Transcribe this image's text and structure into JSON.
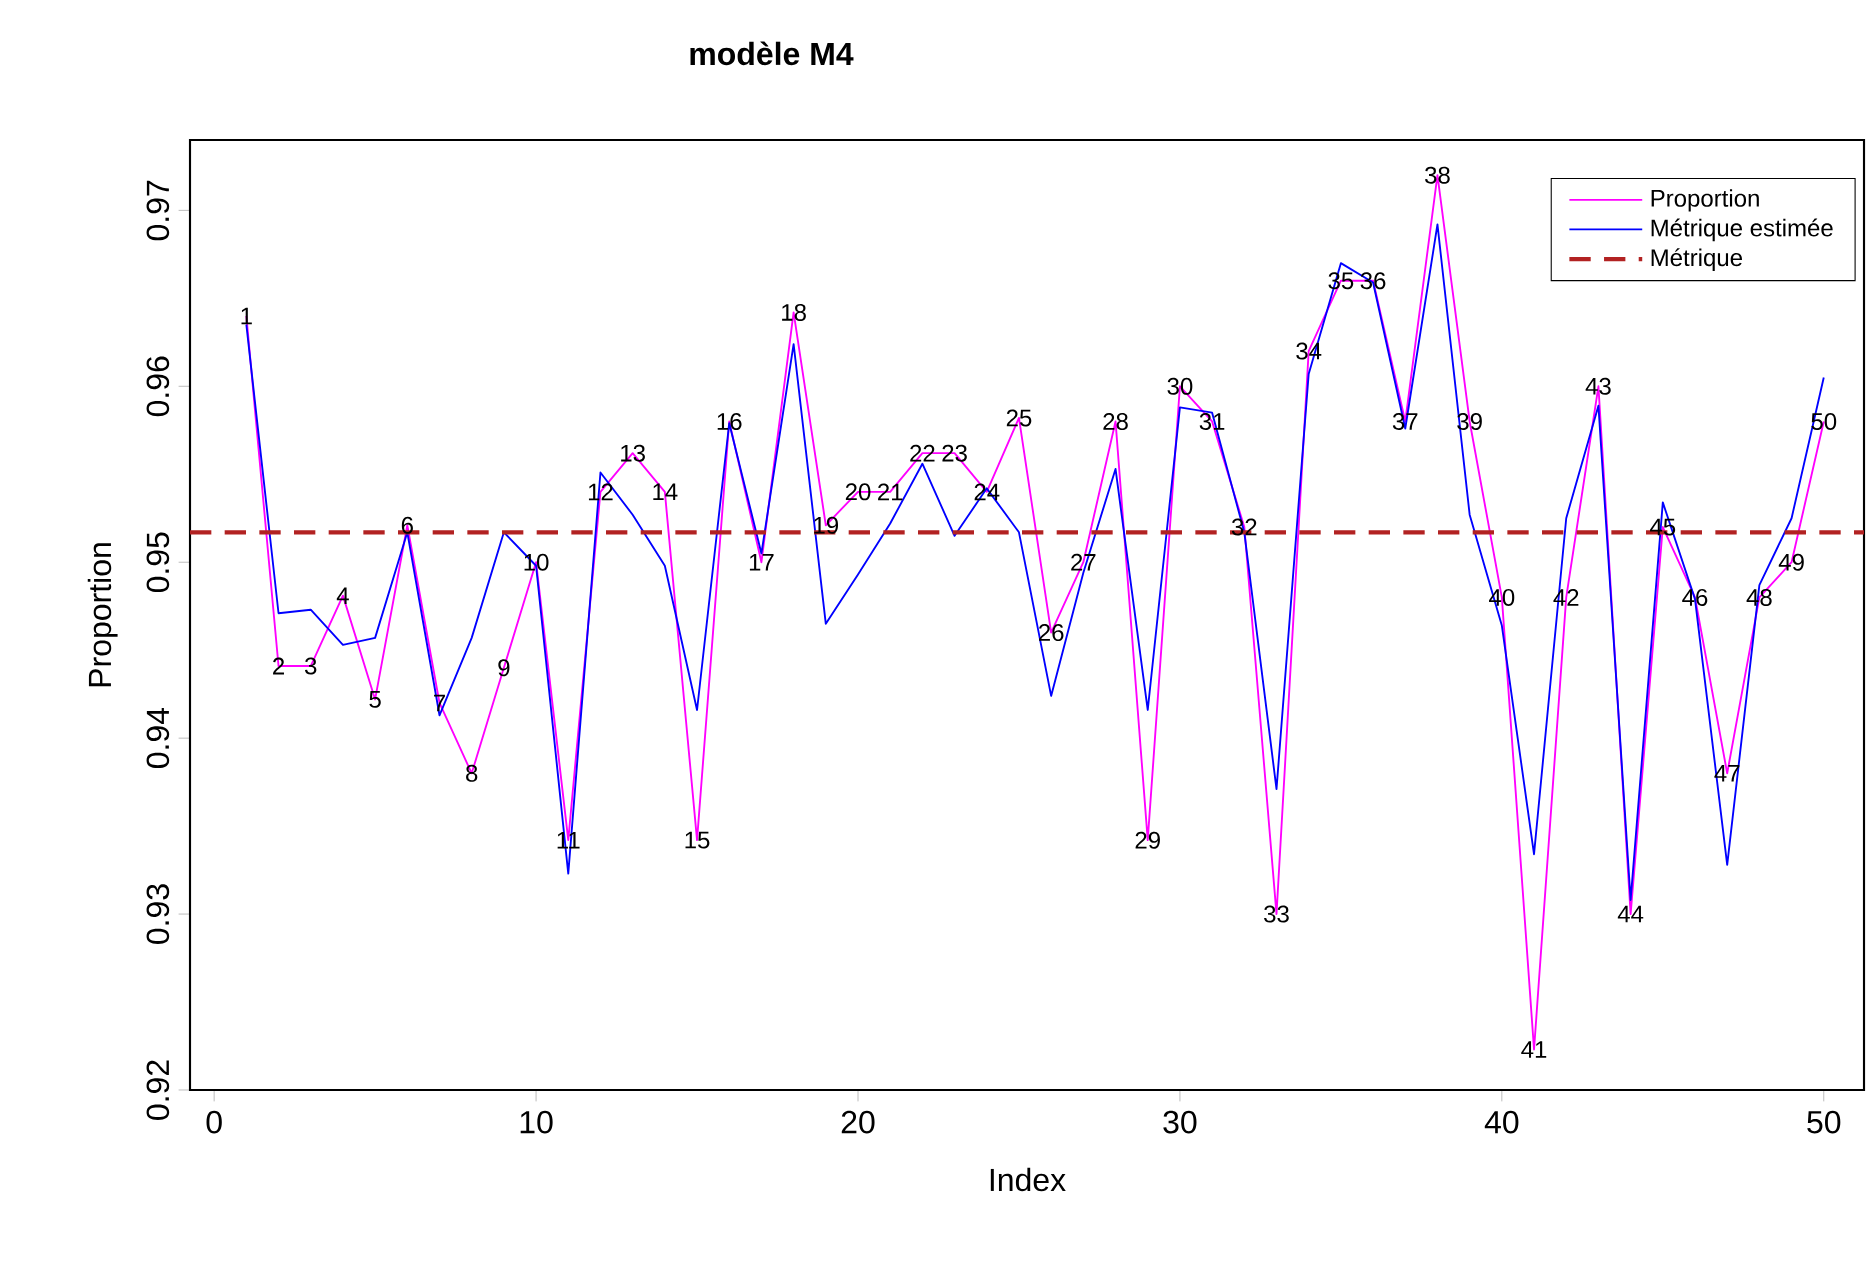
{
  "chart_data": {
    "type": "line",
    "title": "modèle M4",
    "xlabel": "Index",
    "ylabel": "Proportion",
    "x": [
      1,
      2,
      3,
      4,
      5,
      6,
      7,
      8,
      9,
      10,
      11,
      12,
      13,
      14,
      15,
      16,
      17,
      18,
      19,
      20,
      21,
      22,
      23,
      24,
      25,
      26,
      27,
      28,
      29,
      30,
      31,
      32,
      33,
      34,
      35,
      36,
      37,
      38,
      39,
      40,
      41,
      42,
      43,
      44,
      45,
      46,
      47,
      48,
      49,
      50
    ],
    "series": [
      {
        "name": "Proportion",
        "color": "#ff00ff",
        "values": [
          0.964,
          0.9441,
          0.9441,
          0.9481,
          0.9422,
          0.9521,
          0.942,
          0.938,
          0.944,
          0.95,
          0.9342,
          0.954,
          0.9562,
          0.954,
          0.9342,
          0.958,
          0.95,
          0.9642,
          0.9521,
          0.954,
          0.954,
          0.9562,
          0.9562,
          0.954,
          0.9582,
          0.946,
          0.95,
          0.958,
          0.9342,
          0.96,
          0.958,
          0.952,
          0.93,
          0.962,
          0.966,
          0.966,
          0.958,
          0.972,
          0.958,
          0.948,
          0.9223,
          0.948,
          0.96,
          0.93,
          0.952,
          0.948,
          0.938,
          0.948,
          0.95,
          0.958
        ]
      },
      {
        "name": "Métrique estimée",
        "color": "#0000ff",
        "values": [
          0.9635,
          0.9471,
          0.9473,
          0.9453,
          0.9457,
          0.9517,
          0.9413,
          0.9457,
          0.9517,
          0.9498,
          0.9323,
          0.9551,
          0.9527,
          0.9498,
          0.9416,
          0.9579,
          0.9505,
          0.9624,
          0.9465,
          0.9493,
          0.9522,
          0.9556,
          0.9515,
          0.9542,
          0.9517,
          0.9424,
          0.9494,
          0.9553,
          0.9416,
          0.9588,
          0.9585,
          0.9517,
          0.9371,
          0.9607,
          0.967,
          0.9659,
          0.9576,
          0.9692,
          0.9527,
          0.9464,
          0.9334,
          0.9525,
          0.9589,
          0.9308,
          0.9534,
          0.9479,
          0.9328,
          0.9487,
          0.9525,
          0.9605
        ]
      }
    ],
    "ref_lines": [
      {
        "axis": "y",
        "value": 0.9517,
        "label": "Métrique",
        "color": "#b22222",
        "line_style": "dashed"
      }
    ],
    "annotations": [
      {
        "text": "1",
        "x": 1,
        "y": 0.964
      },
      {
        "text": "2",
        "x": 2,
        "y": 0.9441
      },
      {
        "text": "3",
        "x": 3,
        "y": 0.9441
      },
      {
        "text": "4",
        "x": 4,
        "y": 0.9481
      },
      {
        "text": "5",
        "x": 5,
        "y": 0.9422
      },
      {
        "text": "6",
        "x": 6,
        "y": 0.9521
      },
      {
        "text": "7",
        "x": 7,
        "y": 0.942
      },
      {
        "text": "8",
        "x": 8,
        "y": 0.938
      },
      {
        "text": "9",
        "x": 9,
        "y": 0.944
      },
      {
        "text": "10",
        "x": 10,
        "y": 0.95
      },
      {
        "text": "11",
        "x": 11,
        "y": 0.9342
      },
      {
        "text": "12",
        "x": 12,
        "y": 0.954
      },
      {
        "text": "13",
        "x": 13,
        "y": 0.9562
      },
      {
        "text": "14",
        "x": 14,
        "y": 0.954
      },
      {
        "text": "15",
        "x": 15,
        "y": 0.9342
      },
      {
        "text": "16",
        "x": 16,
        "y": 0.958
      },
      {
        "text": "17",
        "x": 17,
        "y": 0.95
      },
      {
        "text": "18",
        "x": 18,
        "y": 0.9642
      },
      {
        "text": "19",
        "x": 19,
        "y": 0.9521
      },
      {
        "text": "20",
        "x": 20,
        "y": 0.954
      },
      {
        "text": "21",
        "x": 21,
        "y": 0.954
      },
      {
        "text": "22",
        "x": 22,
        "y": 0.9562
      },
      {
        "text": "23",
        "x": 23,
        "y": 0.9562
      },
      {
        "text": "24",
        "x": 24,
        "y": 0.954
      },
      {
        "text": "25",
        "x": 25,
        "y": 0.9582
      },
      {
        "text": "26",
        "x": 26,
        "y": 0.946
      },
      {
        "text": "27",
        "x": 27,
        "y": 0.95
      },
      {
        "text": "28",
        "x": 28,
        "y": 0.958
      },
      {
        "text": "29",
        "x": 29,
        "y": 0.9342
      },
      {
        "text": "30",
        "x": 30,
        "y": 0.96
      },
      {
        "text": "31",
        "x": 31,
        "y": 0.958
      },
      {
        "text": "32",
        "x": 32,
        "y": 0.952
      },
      {
        "text": "33",
        "x": 33,
        "y": 0.93
      },
      {
        "text": "34",
        "x": 34,
        "y": 0.962
      },
      {
        "text": "35",
        "x": 35,
        "y": 0.966
      },
      {
        "text": "36",
        "x": 36,
        "y": 0.966
      },
      {
        "text": "37",
        "x": 37,
        "y": 0.958
      },
      {
        "text": "38",
        "x": 38,
        "y": 0.972
      },
      {
        "text": "39",
        "x": 39,
        "y": 0.958
      },
      {
        "text": "40",
        "x": 40,
        "y": 0.948
      },
      {
        "text": "41",
        "x": 41,
        "y": 0.9223
      },
      {
        "text": "42",
        "x": 42,
        "y": 0.948
      },
      {
        "text": "43",
        "x": 43,
        "y": 0.96
      },
      {
        "text": "44",
        "x": 44,
        "y": 0.93
      },
      {
        "text": "45",
        "x": 45,
        "y": 0.952
      },
      {
        "text": "46",
        "x": 46,
        "y": 0.948
      },
      {
        "text": "47",
        "x": 47,
        "y": 0.938
      },
      {
        "text": "48",
        "x": 48,
        "y": 0.948
      },
      {
        "text": "49",
        "x": 49,
        "y": 0.95
      },
      {
        "text": "50",
        "x": 50,
        "y": 0.958
      }
    ],
    "xlim": [
      -0.75,
      51.25
    ],
    "ylim": [
      0.92,
      0.974
    ],
    "xticks": [
      0,
      10,
      20,
      30,
      40,
      50
    ],
    "yticks": [
      0.92,
      0.93,
      0.94,
      0.95,
      0.96,
      0.97
    ],
    "grid": false,
    "legend": "top right",
    "marker": "none",
    "line_style": "solid"
  }
}
